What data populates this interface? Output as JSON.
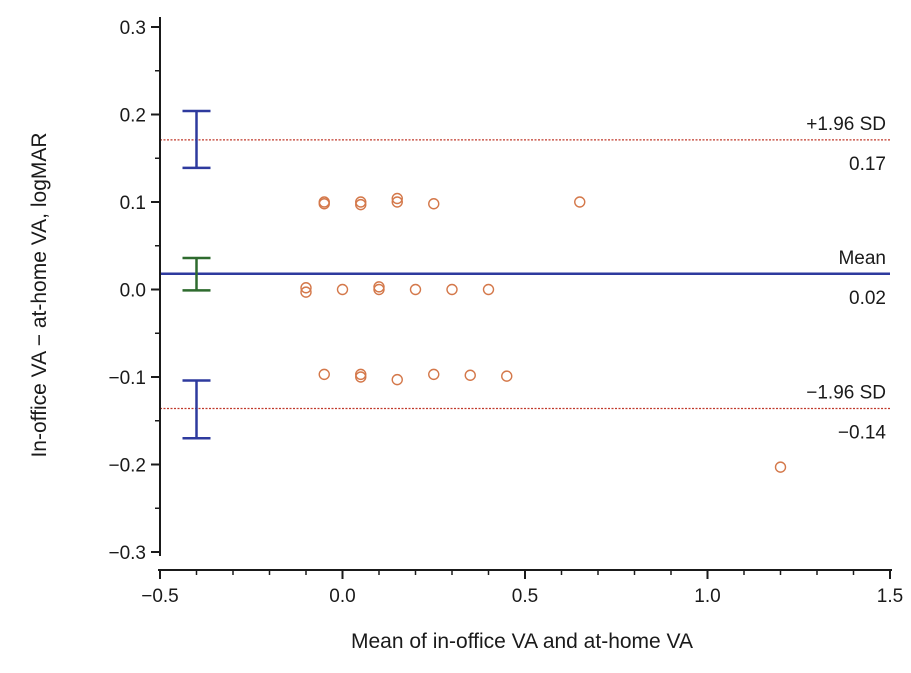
{
  "chart_data": {
    "type": "scatter",
    "xlabel": "Mean of in-office VA and at-home VA",
    "ylabel": "In-office VA − at-home VA, logMAR",
    "xlim": [
      -0.5,
      1.5
    ],
    "ylim": [
      -0.3,
      0.3
    ],
    "x_ticks": [
      -0.5,
      0.0,
      0.5,
      1.0,
      1.5
    ],
    "x_tick_labels": [
      "−0.5",
      "0.0",
      "0.5",
      "1.0",
      "1.5"
    ],
    "y_ticks": [
      -0.3,
      -0.2,
      -0.1,
      0.0,
      0.1,
      0.2,
      0.3
    ],
    "y_tick_labels": [
      "−0.3",
      "−0.2",
      "−0.1",
      "0.0",
      "0.1",
      "0.2",
      "0.3"
    ],
    "grid": false,
    "points": [
      {
        "x": -0.05,
        "y": 0.1
      },
      {
        "x": -0.05,
        "y": 0.098
      },
      {
        "x": 0.05,
        "y": 0.1
      },
      {
        "x": 0.05,
        "y": 0.097
      },
      {
        "x": 0.15,
        "y": 0.104
      },
      {
        "x": 0.15,
        "y": 0.1
      },
      {
        "x": 0.25,
        "y": 0.098
      },
      {
        "x": 0.65,
        "y": 0.1
      },
      {
        "x": -0.1,
        "y": 0.002
      },
      {
        "x": -0.1,
        "y": -0.003
      },
      {
        "x": 0.0,
        "y": 0.0
      },
      {
        "x": 0.1,
        "y": 0.003
      },
      {
        "x": 0.1,
        "y": 0.0
      },
      {
        "x": 0.2,
        "y": 0.0
      },
      {
        "x": 0.3,
        "y": 0.0
      },
      {
        "x": 0.4,
        "y": 0.0
      },
      {
        "x": -0.05,
        "y": -0.097
      },
      {
        "x": 0.05,
        "y": -0.097
      },
      {
        "x": 0.05,
        "y": -0.1
      },
      {
        "x": 0.15,
        "y": -0.103
      },
      {
        "x": 0.25,
        "y": -0.097
      },
      {
        "x": 0.35,
        "y": -0.098
      },
      {
        "x": 0.45,
        "y": -0.099
      },
      {
        "x": 1.2,
        "y": -0.203
      }
    ],
    "reference_lines": [
      {
        "label": "+1.96 SD",
        "value_label": "0.17",
        "y": 0.171,
        "style": "dotted",
        "color": "#c0392b"
      },
      {
        "label": "Mean",
        "value_label": "0.02",
        "y": 0.018,
        "style": "solid",
        "color": "#2e3a9e"
      },
      {
        "label": "−1.96 SD",
        "value_label": "−0.14",
        "y": -0.136,
        "style": "dotted",
        "color": "#c0392b"
      }
    ],
    "confidence_intervals": [
      {
        "x": -0.4,
        "low": 0.139,
        "high": 0.204,
        "color": "#2e3a9e"
      },
      {
        "x": -0.4,
        "low": -0.001,
        "high": 0.036,
        "color": "#2e6b2e"
      },
      {
        "x": -0.4,
        "low": -0.17,
        "high": -0.104,
        "color": "#2e3a9e"
      }
    ],
    "colors": {
      "points": "#d4784a",
      "axis": "#1a1a1a"
    }
  }
}
